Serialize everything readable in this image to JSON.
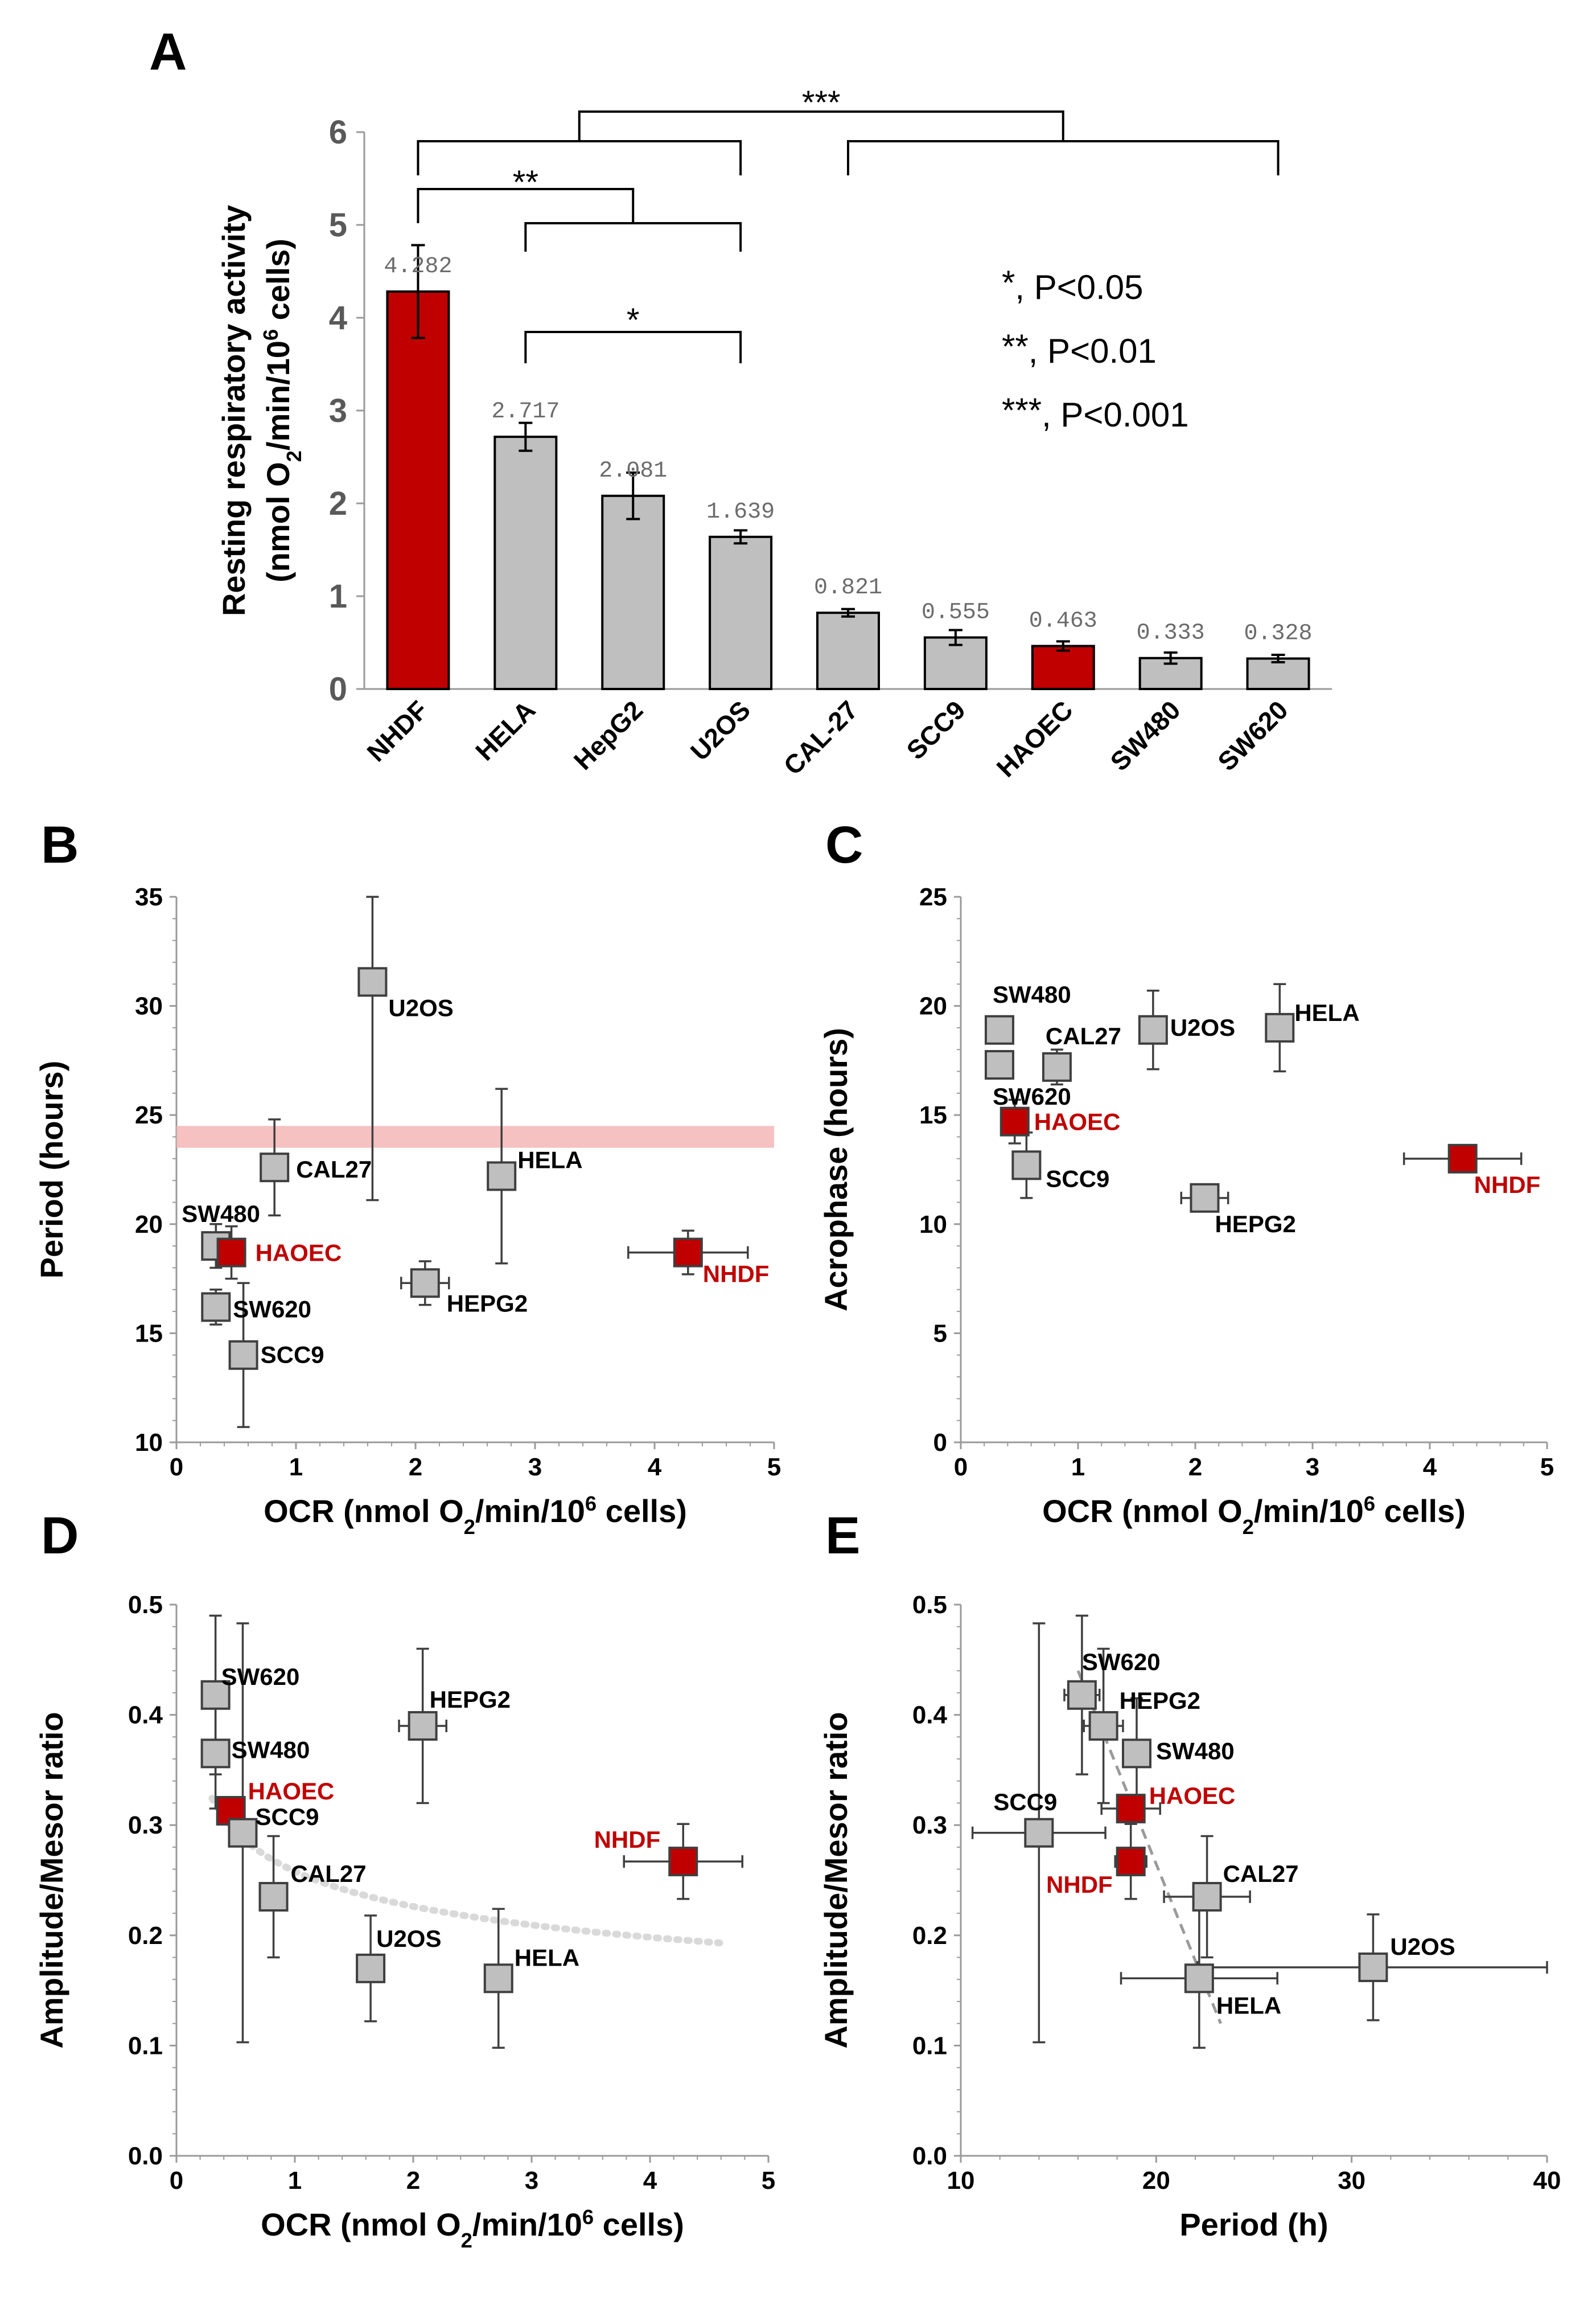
{
  "colors": {
    "highlight": "#c00000",
    "grey": "#bfbfbf",
    "period_band": "#f4b6b6"
  },
  "chart_data": [
    {
      "panel": "A",
      "type": "bar",
      "ylabel": "Resting respiratory activity",
      "ylabel_units": "(nmol O2/min/10^6 cells)",
      "ylim": [
        0,
        6
      ],
      "yticks": [
        0,
        1,
        2,
        3,
        4,
        5,
        6
      ],
      "categories": [
        "NHDF",
        "HELA",
        "HepG2",
        "U2OS",
        "CAL-27",
        "SCC9",
        "HAOEC",
        "SW480",
        "SW620"
      ],
      "values": [
        4.282,
        2.717,
        2.081,
        1.639,
        0.821,
        0.555,
        0.463,
        0.333,
        0.328
      ],
      "value_labels": [
        "4.282",
        "2.717",
        "2.081",
        "1.639",
        "0.821",
        "0.555",
        "0.463",
        "0.333",
        "0.328"
      ],
      "errors": [
        0.5,
        0.15,
        0.25,
        0.07,
        0.04,
        0.08,
        0.05,
        0.06,
        0.04
      ],
      "highlighted": [
        "NHDF",
        "HAOEC"
      ],
      "significance": [
        {
          "label": "***",
          "groups": [
            [
              0,
              3
            ],
            [
              4,
              8
            ]
          ]
        },
        {
          "label": "**",
          "groups": [
            [
              0
            ],
            [
              1,
              3
            ]
          ]
        },
        {
          "label": "*",
          "groups": [
            [
              1
            ],
            [
              3
            ]
          ]
        }
      ],
      "legend": [
        {
          "stars": "*",
          "text": ", P<0.05"
        },
        {
          "stars": "**",
          "text": ", P<0.01"
        },
        {
          "stars": "***",
          "text": ", P<0.001"
        }
      ]
    },
    {
      "panel": "B",
      "type": "scatter",
      "xlabel": "OCR (nmol O2/min/10^6 cells)",
      "ylabel": "Period (hours)",
      "xlim": [
        0,
        5
      ],
      "ylim": [
        10,
        35
      ],
      "xticks": [
        0,
        1,
        2,
        3,
        4,
        5
      ],
      "yticks": [
        10,
        15,
        20,
        25,
        30,
        35
      ],
      "band": [
        23.5,
        24.5
      ],
      "points": [
        {
          "name": "U2OS",
          "x": 1.64,
          "y": 31.1,
          "xerr": 0,
          "yerr": 10,
          "highlight": false
        },
        {
          "name": "CAL27",
          "x": 0.82,
          "y": 22.6,
          "xerr": 0,
          "yerr": 2.2,
          "highlight": false
        },
        {
          "name": "HELA",
          "x": 2.72,
          "y": 22.2,
          "xerr": 0,
          "yerr": 4,
          "highlight": false
        },
        {
          "name": "SW480",
          "x": 0.33,
          "y": 19.0,
          "xerr": 0,
          "yerr": 1,
          "highlight": false
        },
        {
          "name": "HAOEC",
          "x": 0.46,
          "y": 18.7,
          "xerr": 0,
          "yerr": 1.2,
          "highlight": true
        },
        {
          "name": "NHDF",
          "x": 4.28,
          "y": 18.7,
          "xerr": 0.5,
          "yerr": 1,
          "highlight": true
        },
        {
          "name": "HEPG2",
          "x": 2.08,
          "y": 17.3,
          "xerr": 0.2,
          "yerr": 1,
          "highlight": false
        },
        {
          "name": "SW620",
          "x": 0.33,
          "y": 16.2,
          "xerr": 0,
          "yerr": 0.8,
          "highlight": false
        },
        {
          "name": "SCC9",
          "x": 0.56,
          "y": 14.0,
          "xerr": 0,
          "yerr": 3.3,
          "highlight": false
        }
      ]
    },
    {
      "panel": "C",
      "type": "scatter",
      "xlabel": "OCR (nmol O2/min/10^6 cells)",
      "ylabel": "Acrophase (hours)",
      "xlim": [
        0,
        5
      ],
      "ylim": [
        0,
        25
      ],
      "xticks": [
        0,
        1,
        2,
        3,
        4,
        5
      ],
      "yticks": [
        0,
        5,
        10,
        15,
        20,
        25
      ],
      "points": [
        {
          "name": "SW480",
          "x": 0.33,
          "y": 18.9,
          "xerr": 0,
          "yerr": 0,
          "highlight": false
        },
        {
          "name": "SW620",
          "x": 0.33,
          "y": 17.3,
          "xerr": 0,
          "yerr": 0,
          "highlight": false
        },
        {
          "name": "CAL27",
          "x": 0.82,
          "y": 17.2,
          "xerr": 0,
          "yerr": 0.8,
          "highlight": false
        },
        {
          "name": "U2OS",
          "x": 1.64,
          "y": 18.9,
          "xerr": 0,
          "yerr": 1.8,
          "highlight": false
        },
        {
          "name": "HELA",
          "x": 2.72,
          "y": 19.0,
          "xerr": 0,
          "yerr": 2,
          "highlight": false
        },
        {
          "name": "HAOEC",
          "x": 0.46,
          "y": 14.7,
          "xerr": 0,
          "yerr": 1,
          "highlight": true
        },
        {
          "name": "SCC9",
          "x": 0.56,
          "y": 12.7,
          "xerr": 0,
          "yerr": 1.5,
          "highlight": false
        },
        {
          "name": "HEPG2",
          "x": 2.08,
          "y": 11.2,
          "xerr": 0.2,
          "yerr": 0,
          "highlight": false
        },
        {
          "name": "NHDF",
          "x": 4.28,
          "y": 13.0,
          "xerr": 0.5,
          "yerr": 0,
          "highlight": true
        }
      ]
    },
    {
      "panel": "D",
      "type": "scatter",
      "xlabel": "OCR (nmol O2/min/10^6 cells)",
      "ylabel": "Amplitude/Mesor ratio",
      "xlim": [
        0,
        5
      ],
      "ylim": [
        0,
        0.5
      ],
      "xticks": [
        0,
        1,
        2,
        3,
        4,
        5
      ],
      "yticks": [
        "0.0",
        "0.1",
        "0.2",
        "0.3",
        "0.4",
        "0.5"
      ],
      "trendline": {
        "kind": "power",
        "x_from": 0.3,
        "x_to": 4.6,
        "a": 0.258,
        "b": -0.19
      },
      "points": [
        {
          "name": "SW620",
          "x": 0.33,
          "y": 0.418,
          "xerr": 0,
          "yerr": 0.072,
          "highlight": false
        },
        {
          "name": "SW480",
          "x": 0.33,
          "y": 0.365,
          "xerr": 0,
          "yerr": 0.05,
          "highlight": false
        },
        {
          "name": "HAOEC",
          "x": 0.46,
          "y": 0.313,
          "xerr": 0,
          "yerr": 0,
          "highlight": true
        },
        {
          "name": "SCC9",
          "x": 0.56,
          "y": 0.293,
          "xerr": 0,
          "yerr": 0.19,
          "highlight": false
        },
        {
          "name": "CAL27",
          "x": 0.82,
          "y": 0.235,
          "xerr": 0,
          "yerr": 0.055,
          "highlight": false
        },
        {
          "name": "HEPG2",
          "x": 2.08,
          "y": 0.39,
          "xerr": 0.2,
          "yerr": 0.07,
          "highlight": false
        },
        {
          "name": "U2OS",
          "x": 1.64,
          "y": 0.17,
          "xerr": 0,
          "yerr": 0.048,
          "highlight": false
        },
        {
          "name": "HELA",
          "x": 2.72,
          "y": 0.161,
          "xerr": 0,
          "yerr": 0.063,
          "highlight": false
        },
        {
          "name": "NHDF",
          "x": 4.28,
          "y": 0.267,
          "xerr": 0.5,
          "yerr": 0.034,
          "highlight": true
        }
      ]
    },
    {
      "panel": "E",
      "type": "scatter",
      "xlabel": "Period (h)",
      "ylabel": "Amplitude/Mesor ratio",
      "xlim": [
        10,
        40
      ],
      "ylim": [
        0,
        0.5
      ],
      "xticks": [
        10,
        20,
        30,
        40
      ],
      "yticks": [
        "0.0",
        "0.1",
        "0.2",
        "0.3",
        "0.4",
        "0.5"
      ],
      "trendline": {
        "kind": "linear",
        "x_from": 16.0,
        "x_to": 23.3,
        "y_from": 0.44,
        "y_to": 0.12
      },
      "points": [
        {
          "name": "SW620",
          "x": 16.2,
          "y": 0.418,
          "xerr": 0.9,
          "yerr": 0.072,
          "highlight": false
        },
        {
          "name": "HEPG2",
          "x": 17.3,
          "y": 0.39,
          "xerr": 1.0,
          "yerr": 0.07,
          "highlight": false
        },
        {
          "name": "SW480",
          "x": 19.0,
          "y": 0.365,
          "xerr": 0.6,
          "yerr": 0.05,
          "highlight": false
        },
        {
          "name": "HAOEC",
          "x": 18.7,
          "y": 0.315,
          "xerr": 1.5,
          "yerr": 0,
          "highlight": true
        },
        {
          "name": "NHDF",
          "x": 18.7,
          "y": 0.267,
          "xerr": 0.8,
          "yerr": 0.034,
          "highlight": true
        },
        {
          "name": "SCC9",
          "x": 14.0,
          "y": 0.293,
          "xerr": 3.4,
          "yerr": 0.19,
          "highlight": false
        },
        {
          "name": "CAL27",
          "x": 22.6,
          "y": 0.235,
          "xerr": 2.2,
          "yerr": 0.055,
          "highlight": false
        },
        {
          "name": "HELA",
          "x": 22.2,
          "y": 0.161,
          "xerr": 4.0,
          "yerr": 0.063,
          "highlight": false
        },
        {
          "name": "U2OS",
          "x": 31.1,
          "y": 0.171,
          "xerr": 9.0,
          "yerr": 0.048,
          "highlight": false
        }
      ]
    }
  ]
}
